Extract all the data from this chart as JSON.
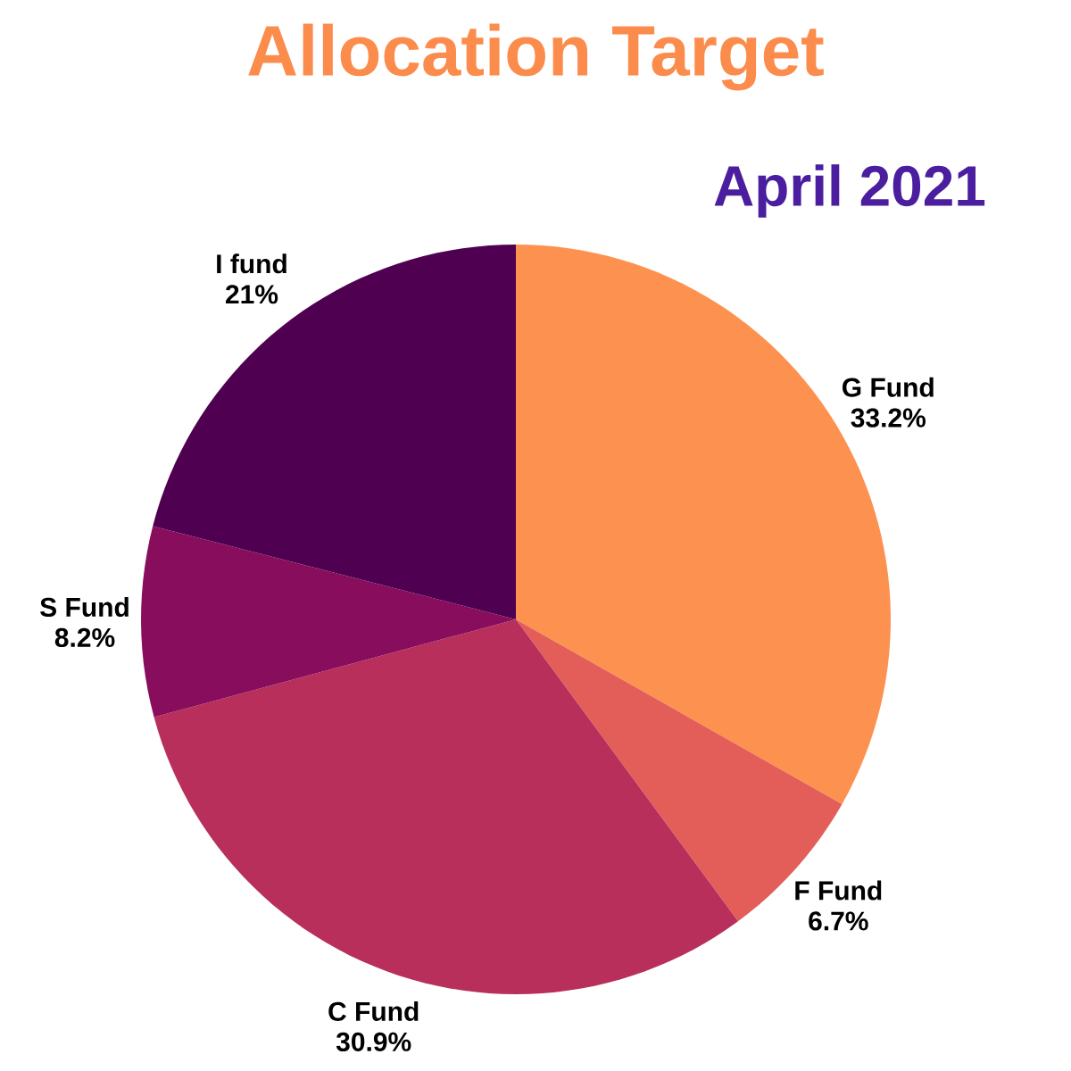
{
  "chart_data": {
    "type": "pie",
    "title": "Allocation Target",
    "subtitle": "April 2021",
    "categories": [
      "G Fund",
      "F Fund",
      "C Fund",
      "S Fund",
      "I fund"
    ],
    "values": [
      33.2,
      6.7,
      30.9,
      8.2,
      21
    ],
    "value_labels": [
      "33.2%",
      "6.7%",
      "30.9%",
      "8.2%",
      "21%"
    ],
    "colors": [
      "#fd9150",
      "#e35e58",
      "#b72f5a",
      "#880d5c",
      "#4f0050"
    ]
  }
}
